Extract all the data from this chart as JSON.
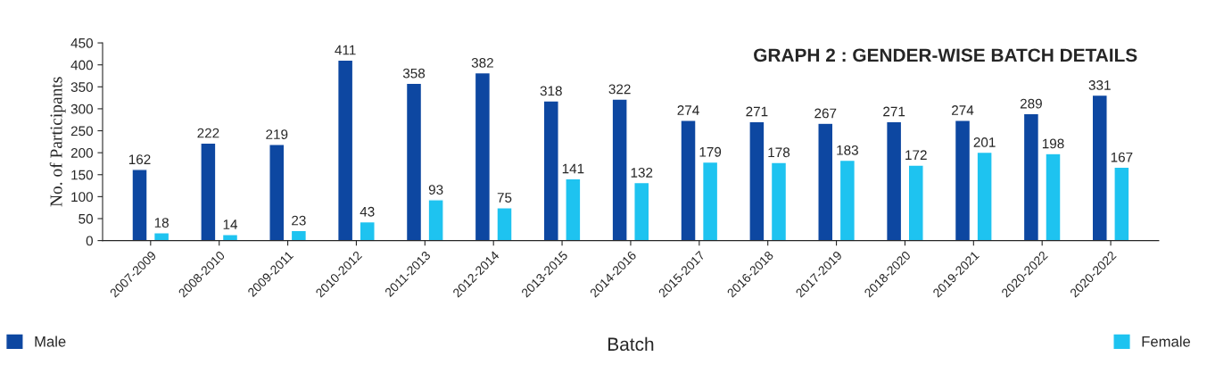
{
  "chart_data": {
    "type": "bar",
    "title": "GRAPH 2 : GENDER-WISE BATCH DETAILS",
    "xlabel": "Batch",
    "ylabel": "No. of Participants",
    "categories": [
      "2007-2009",
      "2008-2010",
      "2009-2011",
      "2010-2012",
      "2011-2013",
      "2012-2014",
      "2013-2015",
      "2014-2016",
      "2015-2017",
      "2016-2018",
      "2017-2019",
      "2018-2020",
      "2019-2021",
      "2020-2022",
      "2020-2022"
    ],
    "series": [
      {
        "name": "Male",
        "color": "#0d47a1",
        "values": [
          162,
          222,
          219,
          411,
          358,
          382,
          318,
          322,
          274,
          271,
          267,
          271,
          274,
          289,
          331
        ]
      },
      {
        "name": "Female",
        "color": "#1ec3f0",
        "values": [
          18,
          14,
          23,
          43,
          93,
          75,
          141,
          132,
          179,
          178,
          183,
          172,
          201,
          198,
          167
        ]
      }
    ],
    "ylim": [
      0,
      450
    ],
    "yticks": [
      0,
      50,
      100,
      150,
      200,
      250,
      300,
      350,
      400,
      450
    ],
    "data_labels": true,
    "grid": false,
    "legend": "bottom"
  }
}
